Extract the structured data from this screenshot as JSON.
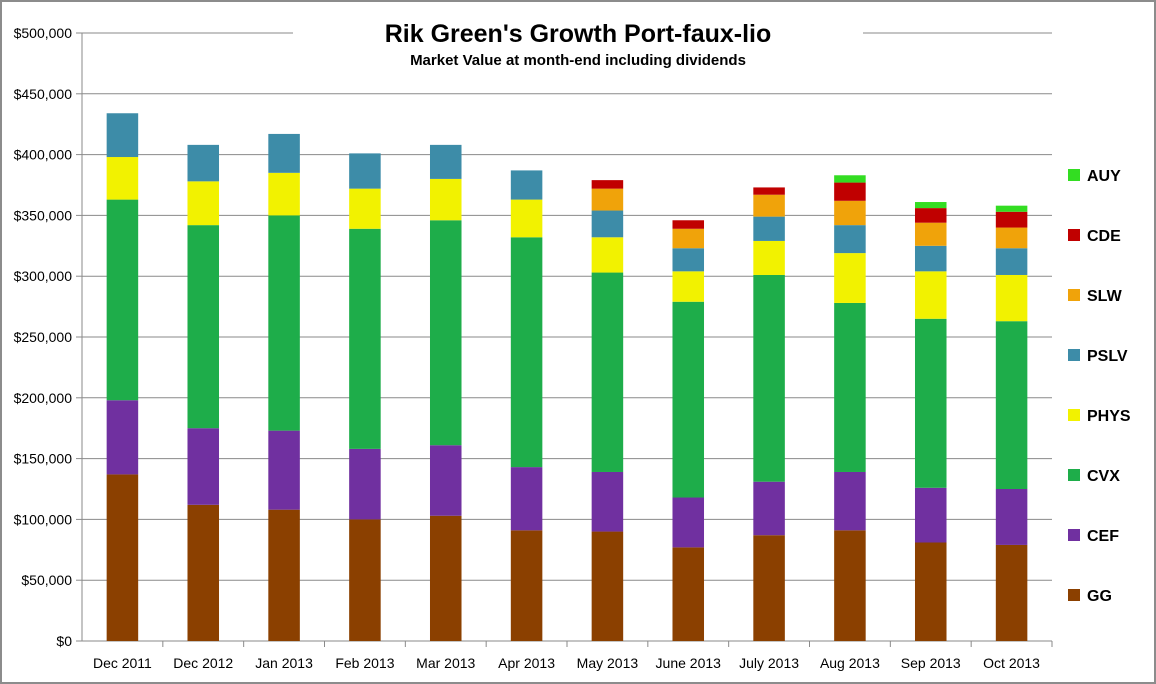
{
  "chart_data": {
    "type": "bar",
    "stacked": true,
    "title": "Rik Green's Growth Port-faux-lio",
    "subtitle": "Market Value at month-end including dividends",
    "xlabel": "",
    "ylabel": "",
    "ylim": [
      0,
      500000
    ],
    "ytick_values": [
      0,
      50000,
      100000,
      150000,
      200000,
      250000,
      300000,
      350000,
      400000,
      450000,
      500000
    ],
    "ytick_labels": [
      "$0",
      "$50,000",
      "$100,000",
      "$150,000",
      "$200,000",
      "$250,000",
      "$300,000",
      "$350,000",
      "$400,000",
      "$450,000",
      "$500,000"
    ],
    "grid": true,
    "legend_position": "right",
    "categories": [
      "Dec 2011",
      "Dec 2012",
      "Jan 2013",
      "Feb 2013",
      "Mar 2013",
      "Apr 2013",
      "May 2013",
      "June 2013",
      "July 2013",
      "Aug 2013",
      "Sep 2013",
      "Oct 2013"
    ],
    "series": [
      {
        "name": "GG",
        "color": "#8B4000",
        "values": [
          137000,
          112000,
          108000,
          100000,
          103000,
          91000,
          90000,
          77000,
          87000,
          91000,
          81000,
          79000
        ]
      },
      {
        "name": "CEF",
        "color": "#7030A0",
        "values": [
          61000,
          63000,
          65000,
          58000,
          58000,
          52000,
          49000,
          41000,
          44000,
          48000,
          45000,
          46000
        ]
      },
      {
        "name": "CVX",
        "color": "#1EAD4A",
        "values": [
          165000,
          167000,
          177000,
          181000,
          185000,
          189000,
          164000,
          161000,
          170000,
          139000,
          139000,
          138000
        ]
      },
      {
        "name": "PHYS",
        "color": "#F2F200",
        "values": [
          35000,
          36000,
          35000,
          33000,
          34000,
          31000,
          29000,
          25000,
          28000,
          41000,
          39000,
          38000
        ]
      },
      {
        "name": "PSLV",
        "color": "#3D8CA8",
        "values": [
          36000,
          30000,
          32000,
          29000,
          28000,
          24000,
          22000,
          19000,
          20000,
          23000,
          21000,
          22000
        ]
      },
      {
        "name": "SLW",
        "color": "#F0A30A",
        "values": [
          0,
          0,
          0,
          0,
          0,
          0,
          18000,
          16000,
          18000,
          20000,
          19000,
          17000
        ]
      },
      {
        "name": "CDE",
        "color": "#C00000",
        "values": [
          0,
          0,
          0,
          0,
          0,
          0,
          7000,
          7000,
          6000,
          15000,
          12000,
          13000
        ]
      },
      {
        "name": "AUY",
        "color": "#33DD22",
        "values": [
          0,
          0,
          0,
          0,
          0,
          0,
          0,
          0,
          0,
          6000,
          5000,
          5000
        ]
      }
    ],
    "legend_order": [
      "AUY",
      "CDE",
      "SLW",
      "PSLV",
      "PHYS",
      "CVX",
      "CEF",
      "GG"
    ]
  }
}
